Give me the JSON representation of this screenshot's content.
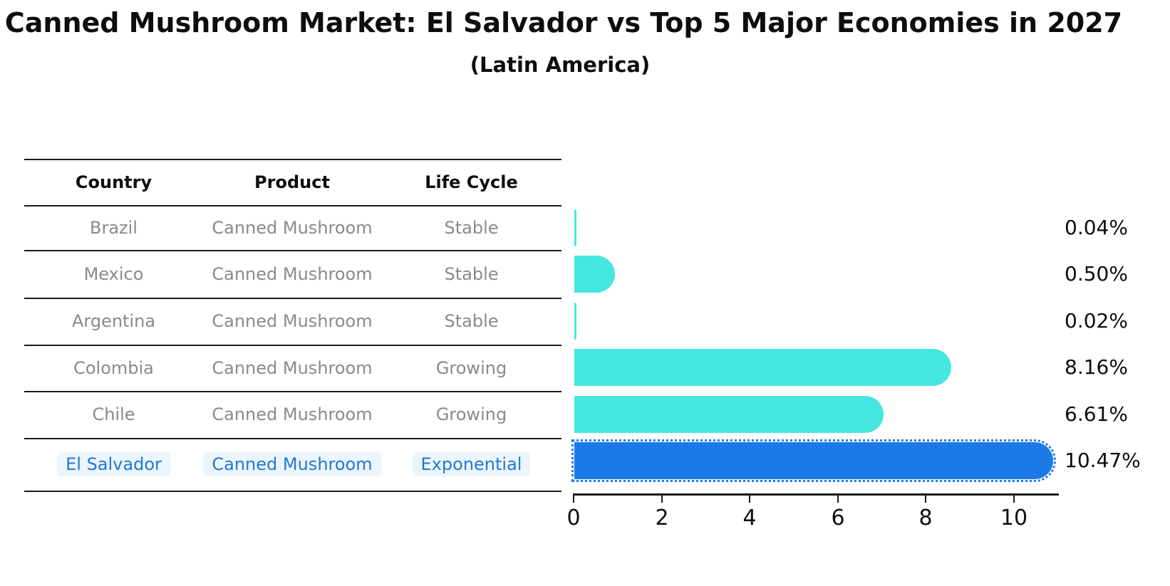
{
  "title": "Canned Mushroom Market: El Salvador vs Top 5 Major Economies in 2027",
  "subtitle": "(Latin America)",
  "table": {
    "headers": [
      "Country",
      "Product",
      "Life Cycle"
    ],
    "rows": [
      {
        "country": "Brazil",
        "product": "Canned Mushroom",
        "life_cycle": "Stable"
      },
      {
        "country": "Mexico",
        "product": "Canned Mushroom",
        "life_cycle": "Stable"
      },
      {
        "country": "Argentina",
        "product": "Canned Mushroom",
        "life_cycle": "Stable"
      },
      {
        "country": "Colombia",
        "product": "Canned Mushroom",
        "life_cycle": "Growing"
      },
      {
        "country": "Chile",
        "product": "Canned Mushroom",
        "life_cycle": "Growing"
      },
      {
        "country": "El Salvador",
        "product": "Canned Mushroom",
        "life_cycle": "Exponential"
      }
    ],
    "highlight_row": "El Salvador"
  },
  "chart_data": {
    "type": "bar",
    "orientation": "horizontal",
    "title": "Canned Mushroom Market: El Salvador vs Top 5 Major Economies in 2027",
    "subtitle": "(Latin America)",
    "categories": [
      "Brazil",
      "Mexico",
      "Argentina",
      "Colombia",
      "Chile",
      "El Salvador"
    ],
    "values": [
      0.04,
      0.5,
      0.02,
      8.16,
      6.61,
      10.47
    ],
    "value_labels": [
      "0.04%",
      "0.50%",
      "0.02%",
      "8.16%",
      "6.61%",
      "10.47%"
    ],
    "xlabel": "",
    "ylabel": "",
    "xlim": [
      0,
      11
    ],
    "xticks": [
      0,
      2,
      4,
      6,
      8,
      10
    ],
    "grid": false,
    "legend": false,
    "bar_color": "#45E6E0",
    "highlight_color": "#1B7AE8",
    "highlight_index": 5
  },
  "colors": {
    "bar_cyan": "#45E6E0",
    "bar_blue": "#1B7AE8",
    "highlight_text": "#2478CE",
    "row_text": "#8A8A8A",
    "heading_text": "#0d0d0d"
  }
}
